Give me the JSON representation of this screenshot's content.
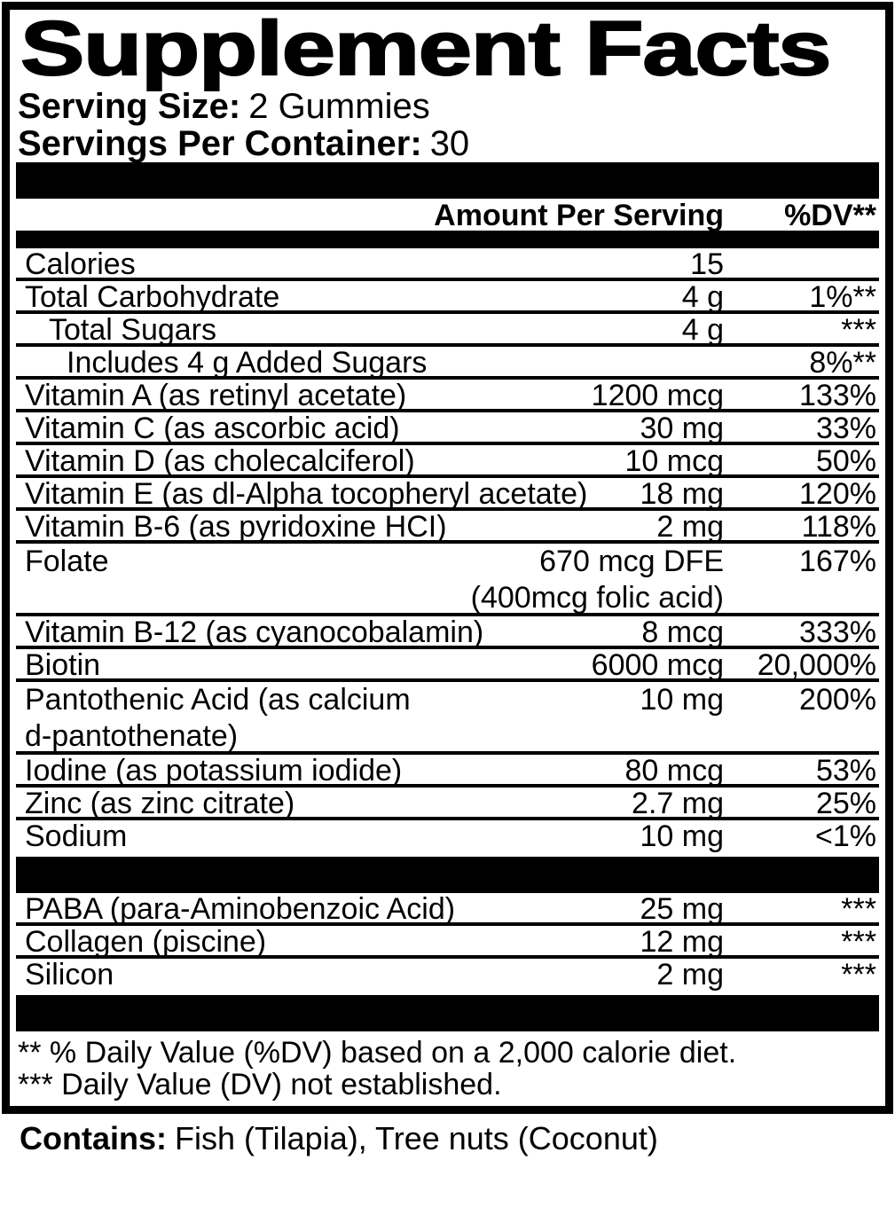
{
  "label": {
    "title": "Supplement Facts",
    "serving_size": {
      "label": "Serving Size:",
      "value": "2 Gummies"
    },
    "servings_per_container": {
      "label": "Servings Per Container:",
      "value": "30"
    },
    "columns": {
      "amount_header": "Amount Per Serving",
      "dv_header": "%DV**"
    },
    "nutrients": [
      {
        "name": "Calories",
        "amount": "15",
        "dv": "",
        "indent": 0
      },
      {
        "name": "Total Carbohydrate",
        "amount": "4 g",
        "dv": "1%**",
        "indent": 0
      },
      {
        "name": "Total Sugars",
        "amount": "4 g",
        "dv": "***",
        "indent": 1
      },
      {
        "name": "Includes 4 g Added Sugars",
        "amount": "",
        "dv": "8%**",
        "indent": 2
      },
      {
        "name": "Vitamin A (as retinyl acetate)",
        "amount": "1200 mcg",
        "dv": "133%",
        "indent": 0
      },
      {
        "name": "Vitamin C (as ascorbic acid)",
        "amount": "30 mg",
        "dv": "33%",
        "indent": 0
      },
      {
        "name": "Vitamin D (as cholecalciferol)",
        "amount": "10 mcg",
        "dv": "50%",
        "indent": 0
      },
      {
        "name": "Vitamin E (as dl-Alpha tocopheryl acetate)",
        "amount": "18 mg",
        "dv": "120%",
        "indent": 0
      },
      {
        "name": "Vitamin B-6 (as pyridoxine HCI)",
        "amount": "2 mg",
        "dv": "118%",
        "indent": 0
      },
      {
        "name": "Folate",
        "amount": "670 mcg DFE",
        "amount_line2": "(400mcg folic acid)",
        "dv": "167%",
        "indent": 0
      },
      {
        "name": "Vitamin B-12 (as cyanocobalamin)",
        "amount": "8 mcg",
        "dv": "333%",
        "indent": 0
      },
      {
        "name": "Biotin",
        "amount": "6000 mcg",
        "dv": "20,000%",
        "indent": 0
      },
      {
        "name": "Pantothenic Acid (as calcium",
        "name_line2": "d-pantothenate)",
        "amount": "10 mg",
        "dv": "200%",
        "indent": 0
      },
      {
        "name": "Iodine (as potassium iodide)",
        "amount": "80 mcg",
        "dv": "53%",
        "indent": 0
      },
      {
        "name": "Zinc (as zinc citrate)",
        "amount": "2.7 mg",
        "dv": "25%",
        "indent": 0
      },
      {
        "name": "Sodium",
        "amount": "10 mg",
        "dv": "<1%",
        "indent": 0
      }
    ],
    "other_ingredients": [
      {
        "name": "PABA (para-Aminobenzoic Acid)",
        "amount": "25 mg",
        "dv": "***",
        "indent": 0
      },
      {
        "name": "Collagen (piscine)",
        "amount": "12 mg",
        "dv": "***",
        "indent": 0
      },
      {
        "name": "Silicon",
        "amount": "2 mg",
        "dv": "***",
        "indent": 0
      }
    ],
    "footnotes": [
      "** % Daily Value (%DV) based on a 2,000 calorie diet.",
      "*** Daily Value (DV) not established."
    ],
    "contains": {
      "label": "Contains:",
      "value": "Fish (Tilapia), Tree nuts (Coconut)"
    },
    "colors": {
      "ink": "#000000",
      "background": "#ffffff"
    }
  }
}
